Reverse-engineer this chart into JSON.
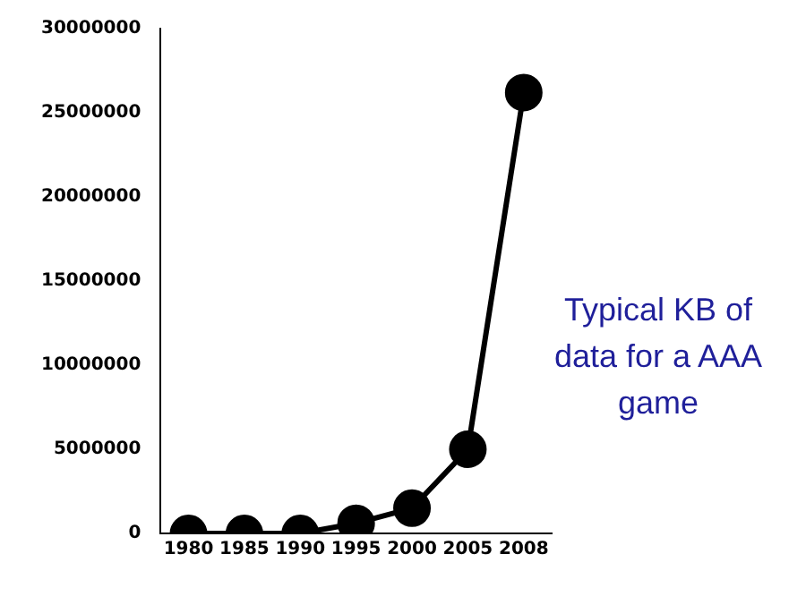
{
  "chart_data": {
    "type": "line",
    "categories": [
      "1980",
      "1985",
      "1990",
      "1995",
      "2000",
      "2005",
      "2008"
    ],
    "series": [
      {
        "color": "#000000",
        "values": [
          0,
          0,
          0,
          600000,
          1500000,
          5000000,
          26200000
        ]
      }
    ],
    "ylim": [
      0,
      30000000
    ],
    "yticks": [
      0,
      5000000,
      10000000,
      15000000,
      20000000,
      25000000,
      30000000
    ],
    "grid": false,
    "legend": false,
    "marker": "circle",
    "line_style": "solid",
    "annotations": [
      "Typical KB of data for a AAA game"
    ]
  }
}
